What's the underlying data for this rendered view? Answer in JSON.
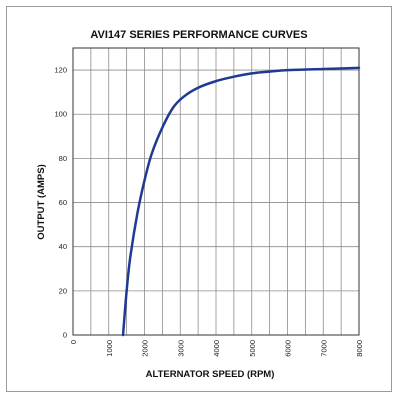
{
  "chart_data": {
    "type": "line",
    "title": "AVI147 SERIES PERFORMANCE CURVES",
    "xlabel": "ALTERNATOR SPEED (RPM)",
    "ylabel": "OUTPUT (AMPS)",
    "xlim": [
      0,
      8000
    ],
    "ylim": [
      0,
      130
    ],
    "xticks": [
      "0",
      "1000",
      "2000",
      "3000",
      "4000",
      "5000",
      "6000",
      "7000",
      "8000"
    ],
    "yticks": [
      "0",
      "20",
      "40",
      "60",
      "80",
      "100",
      "120"
    ],
    "x_gridlines": 16,
    "grid": true,
    "line_color": "#1f3a93",
    "series": [
      {
        "x": [
          1400,
          1500,
          1600,
          1800,
          2000,
          2200,
          2500,
          2800,
          3100,
          3500,
          4000,
          4500,
          5000,
          5500,
          6000,
          7000,
          8000
        ],
        "y": [
          0,
          20,
          35,
          55,
          70,
          82,
          94,
          103,
          108,
          112,
          115,
          117,
          118.5,
          119.3,
          120,
          120.5,
          121
        ]
      }
    ]
  }
}
